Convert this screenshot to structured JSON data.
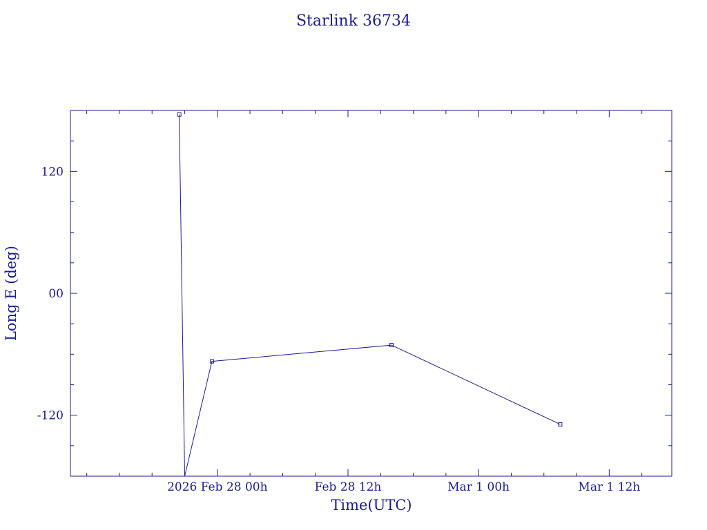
{
  "chart_data": {
    "type": "line",
    "title": "Starlink 36734",
    "xlabel": "Time(UTC)",
    "ylabel": "Long E (deg)",
    "x_tick_labels": [
      {
        "time": "2026-02-28T00:00",
        "label": "2026 Feb 28  00h"
      },
      {
        "time": "2026-02-28T12:00",
        "label": "Feb 28  12h"
      },
      {
        "time": "2026-03-01T00:00",
        "label": "Mar  1  00h"
      },
      {
        "time": "2026-03-01T12:00",
        "label": "Mar  1  12h"
      }
    ],
    "y_tick_labels": [
      {
        "value": 120,
        "label": "120"
      },
      {
        "value": 0,
        "label": "00"
      },
      {
        "value": -120,
        "label": "-120"
      }
    ],
    "xlim": [
      "2026-02-27T10:30",
      "2026-03-01T17:45"
    ],
    "ylim": [
      -180,
      180
    ],
    "x_minor_step_hours": 3,
    "y_minor_step": 30,
    "color": "#1a1a9c",
    "series": [
      {
        "segments": [
          {
            "points": [
              {
                "t": "2026-02-27T20:30",
                "y": 176
              },
              {
                "t": "2026-02-27T21:00",
                "y": -180
              }
            ]
          },
          {
            "points": [
              {
                "t": "2026-02-27T21:00",
                "y": -180
              },
              {
                "t": "2026-02-27T23:30",
                "y": -67
              },
              {
                "t": "2026-02-28T16:00",
                "y": -51
              },
              {
                "t": "2026-03-01T07:30",
                "y": -129
              }
            ]
          }
        ],
        "markers": [
          {
            "t": "2026-02-27T20:30",
            "y": 176
          },
          {
            "t": "2026-02-27T23:30",
            "y": -67
          },
          {
            "t": "2026-02-28T16:00",
            "y": -51
          },
          {
            "t": "2026-03-01T07:30",
            "y": -129
          }
        ]
      }
    ]
  }
}
